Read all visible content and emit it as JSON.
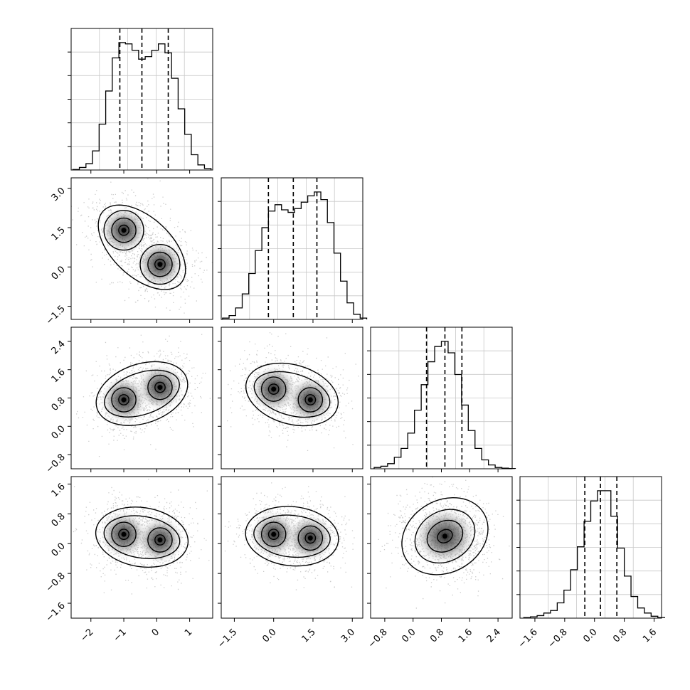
{
  "chart_data": [
    {
      "panel": "hist-p1",
      "type": "histogram",
      "xlim": [
        -2.6,
        1.7
      ],
      "xticks": [
        -2,
        -1,
        0,
        1
      ],
      "xtick_labels": [
        "−2",
        "−1",
        "0",
        "1"
      ],
      "bin_start": -2.55,
      "bin_width": 0.2,
      "counts": [
        0.004,
        0.02,
        0.05,
        0.15,
        0.36,
        0.62,
        0.88,
        1.0,
        0.99,
        0.94,
        0.87,
        0.89,
        0.94,
        0.99,
        0.92,
        0.72,
        0.48,
        0.28,
        0.12,
        0.04,
        0.012
      ],
      "quantile_lines": [
        -1.12,
        -0.45,
        0.35
      ],
      "grid": true
    },
    {
      "panel": "hist-p2",
      "type": "histogram",
      "xlim": [
        -2.0,
        3.4
      ],
      "xticks": [
        -1.5,
        0.0,
        1.5,
        3.0
      ],
      "xtick_labels": [
        "−1.5",
        "0.0",
        "1.5",
        "3.0"
      ],
      "bin_start": -1.95,
      "bin_width": 0.25,
      "counts": [
        0.01,
        0.03,
        0.09,
        0.2,
        0.36,
        0.54,
        0.72,
        0.85,
        0.9,
        0.86,
        0.84,
        0.87,
        0.92,
        0.97,
        1.0,
        0.94,
        0.76,
        0.52,
        0.3,
        0.13,
        0.04,
        0.01
      ],
      "quantile_lines": [
        -0.2,
        0.75,
        1.65
      ],
      "grid": true
    },
    {
      "panel": "hist-p3",
      "type": "histogram",
      "xlim": [
        -1.2,
        2.8
      ],
      "xticks": [
        -0.8,
        0.0,
        0.8,
        1.6,
        2.4
      ],
      "xtick_labels": [
        "−0.8",
        "0.0",
        "0.8",
        "1.6",
        "2.4"
      ],
      "bin_start": -1.1,
      "bin_width": 0.19,
      "counts": [
        0.01,
        0.02,
        0.04,
        0.09,
        0.16,
        0.28,
        0.46,
        0.66,
        0.84,
        0.96,
        1.0,
        0.91,
        0.74,
        0.5,
        0.3,
        0.16,
        0.07,
        0.03,
        0.01,
        0.005,
        0.002
      ],
      "quantile_lines": [
        0.38,
        0.9,
        1.38
      ],
      "grid": true
    },
    {
      "panel": "hist-p4",
      "type": "histogram",
      "xlim": [
        -2.0,
        1.8
      ],
      "xticks": [
        -1.6,
        -0.8,
        0.0,
        0.8,
        1.6
      ],
      "xtick_labels": [
        "−1.6",
        "−0.8",
        "0.0",
        "0.8",
        "1.6"
      ],
      "bin_start": -1.9,
      "bin_width": 0.18,
      "counts": [
        0.005,
        0.01,
        0.02,
        0.04,
        0.06,
        0.12,
        0.22,
        0.38,
        0.56,
        0.76,
        0.92,
        1.0,
        1.0,
        0.8,
        0.55,
        0.33,
        0.17,
        0.08,
        0.04,
        0.015,
        0.005
      ],
      "quantile_lines": [
        -0.26,
        0.16,
        0.6
      ],
      "grid": true
    },
    {
      "panel": "scatter-p1-p2",
      "type": "scatter",
      "x_param": 1,
      "y_param": 2,
      "xlim": [
        -2.6,
        1.7
      ],
      "ylim": [
        -2.0,
        3.4
      ],
      "yticks": [
        -1.5,
        0.0,
        1.5,
        3.0
      ],
      "ytick_labels": [
        "−1.5",
        "0.0",
        "1.5",
        "3.0"
      ],
      "density_peaks": [
        {
          "x": -1.0,
          "y": 1.4
        },
        {
          "x": 0.1,
          "y": 0.1
        }
      ]
    },
    {
      "panel": "scatter-p1-p3",
      "type": "scatter",
      "x_param": 1,
      "y_param": 3,
      "xlim": [
        -2.6,
        1.7
      ],
      "ylim": [
        -1.2,
        2.8
      ],
      "yticks": [
        -0.8,
        0.0,
        0.8,
        1.6,
        2.4
      ],
      "ytick_labels": [
        "−0.8",
        "0.0",
        "0.8",
        "1.6",
        "2.4"
      ],
      "density_peaks": [
        {
          "x": -1.0,
          "y": 0.75
        },
        {
          "x": 0.1,
          "y": 1.1
        }
      ]
    },
    {
      "panel": "scatter-p2-p3",
      "type": "scatter",
      "x_param": 2,
      "y_param": 3,
      "xlim": [
        -2.0,
        3.4
      ],
      "ylim": [
        -1.2,
        2.8
      ],
      "density_peaks": [
        {
          "x": 0.0,
          "y": 1.05
        },
        {
          "x": 1.4,
          "y": 0.75
        }
      ]
    },
    {
      "panel": "scatter-p1-p4",
      "type": "scatter",
      "x_param": 1,
      "y_param": 4,
      "xlim": [
        -2.6,
        1.7
      ],
      "ylim": [
        -2.0,
        1.8
      ],
      "xticks": [
        -2,
        -1,
        0,
        1
      ],
      "xtick_labels": [
        "−2",
        "−1",
        "0",
        "1"
      ],
      "yticks": [
        -1.6,
        -0.8,
        0.0,
        0.8,
        1.6
      ],
      "ytick_labels": [
        "−1.6",
        "−0.8",
        "0.0",
        "0.8",
        "1.6"
      ],
      "density_peaks": [
        {
          "x": -1.0,
          "y": 0.25
        },
        {
          "x": 0.1,
          "y": 0.1
        }
      ]
    },
    {
      "panel": "scatter-p2-p4",
      "type": "scatter",
      "x_param": 2,
      "y_param": 4,
      "xlim": [
        -2.0,
        3.4
      ],
      "ylim": [
        -2.0,
        1.8
      ],
      "xticks": [
        -1.5,
        0.0,
        1.5,
        3.0
      ],
      "xtick_labels": [
        "−1.5",
        "0.0",
        "1.5",
        "3.0"
      ],
      "density_peaks": [
        {
          "x": 0.0,
          "y": 0.25
        },
        {
          "x": 1.4,
          "y": 0.15
        }
      ]
    },
    {
      "panel": "scatter-p3-p4",
      "type": "scatter",
      "x_param": 3,
      "y_param": 4,
      "xlim": [
        -1.2,
        2.8
      ],
      "ylim": [
        -2.0,
        1.8
      ],
      "xticks": [
        -0.8,
        0.0,
        0.8,
        1.6,
        2.4
      ],
      "xtick_labels": [
        "−0.8",
        "0.0",
        "0.8",
        "1.6",
        "2.4"
      ],
      "density_peaks": [
        {
          "x": 0.9,
          "y": 0.2
        }
      ]
    }
  ],
  "style": {
    "line_color": "#000000",
    "point_color": "#9a9a9a",
    "grid_color": "#c8c8c8"
  }
}
